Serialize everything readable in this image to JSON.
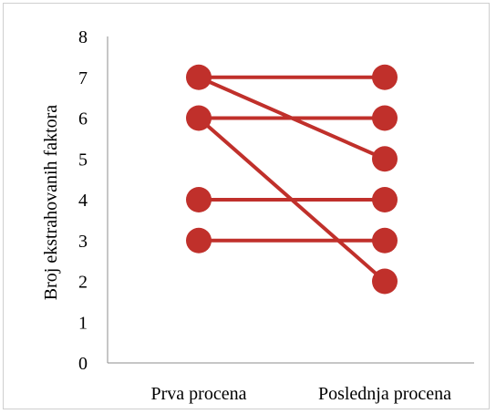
{
  "chart_data": {
    "type": "line",
    "title": "",
    "xlabel": "",
    "ylabel": "Broj ekstrahovanih faktora",
    "categories": [
      "Prva procena",
      "Poslednja procena"
    ],
    "ylim": [
      0,
      8
    ],
    "yticks": [
      0,
      1,
      2,
      3,
      4,
      5,
      6,
      7,
      8
    ],
    "grid": false,
    "legend": "none",
    "series_color": "#c0302b",
    "series": [
      {
        "values": [
          7,
          7
        ]
      },
      {
        "values": [
          7,
          5
        ]
      },
      {
        "values": [
          6,
          6
        ]
      },
      {
        "values": [
          6,
          2
        ]
      },
      {
        "values": [
          4,
          4
        ]
      },
      {
        "values": [
          3,
          3
        ]
      }
    ]
  }
}
